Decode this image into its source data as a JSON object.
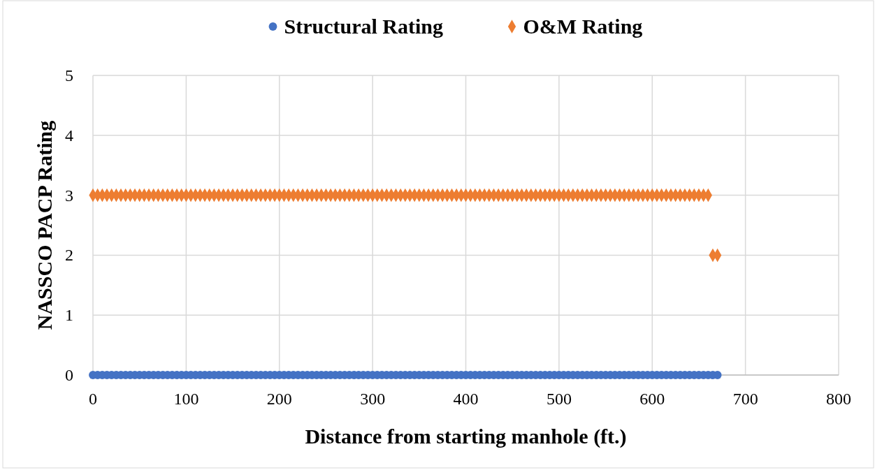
{
  "chart_data": {
    "type": "scatter",
    "xlabel": "Distance from starting manhole (ft.)",
    "ylabel": "NASSCO PACP Rating",
    "xlim": [
      0,
      800
    ],
    "xticks": [
      0,
      100,
      200,
      300,
      400,
      500,
      600,
      700,
      800
    ],
    "ylim": [
      0,
      5
    ],
    "yticks": [
      0,
      1,
      2,
      3,
      4,
      5
    ],
    "grid": true,
    "legend": "top",
    "series": [
      {
        "name": "Structural Rating",
        "color": "#4472c4",
        "marker": "circle",
        "x": [
          0,
          5,
          10,
          15,
          20,
          25,
          30,
          35,
          40,
          45,
          50,
          55,
          60,
          65,
          70,
          75,
          80,
          85,
          90,
          95,
          100,
          105,
          110,
          115,
          120,
          125,
          130,
          135,
          140,
          145,
          150,
          155,
          160,
          165,
          170,
          175,
          180,
          185,
          190,
          195,
          200,
          205,
          210,
          215,
          220,
          225,
          230,
          235,
          240,
          245,
          250,
          255,
          260,
          265,
          270,
          275,
          280,
          285,
          290,
          295,
          300,
          305,
          310,
          315,
          320,
          325,
          330,
          335,
          340,
          345,
          350,
          355,
          360,
          365,
          370,
          375,
          380,
          385,
          390,
          395,
          400,
          405,
          410,
          415,
          420,
          425,
          430,
          435,
          440,
          445,
          450,
          455,
          460,
          465,
          470,
          475,
          480,
          485,
          490,
          495,
          500,
          505,
          510,
          515,
          520,
          525,
          530,
          535,
          540,
          545,
          550,
          555,
          560,
          565,
          570,
          575,
          580,
          585,
          590,
          595,
          600,
          605,
          610,
          615,
          620,
          625,
          630,
          635,
          640,
          645,
          650,
          655,
          660,
          665,
          670
        ],
        "values": [
          0,
          0,
          0,
          0,
          0,
          0,
          0,
          0,
          0,
          0,
          0,
          0,
          0,
          0,
          0,
          0,
          0,
          0,
          0,
          0,
          0,
          0,
          0,
          0,
          0,
          0,
          0,
          0,
          0,
          0,
          0,
          0,
          0,
          0,
          0,
          0,
          0,
          0,
          0,
          0,
          0,
          0,
          0,
          0,
          0,
          0,
          0,
          0,
          0,
          0,
          0,
          0,
          0,
          0,
          0,
          0,
          0,
          0,
          0,
          0,
          0,
          0,
          0,
          0,
          0,
          0,
          0,
          0,
          0,
          0,
          0,
          0,
          0,
          0,
          0,
          0,
          0,
          0,
          0,
          0,
          0,
          0,
          0,
          0,
          0,
          0,
          0,
          0,
          0,
          0,
          0,
          0,
          0,
          0,
          0,
          0,
          0,
          0,
          0,
          0,
          0,
          0,
          0,
          0,
          0,
          0,
          0,
          0,
          0,
          0,
          0,
          0,
          0,
          0,
          0,
          0,
          0,
          0,
          0,
          0,
          0,
          0,
          0,
          0,
          0,
          0,
          0,
          0,
          0,
          0,
          0,
          0,
          0,
          0,
          0
        ]
      },
      {
        "name": "O&M Rating",
        "color": "#ed7d31",
        "marker": "diamond",
        "x": [
          0,
          5,
          10,
          15,
          20,
          25,
          30,
          35,
          40,
          45,
          50,
          55,
          60,
          65,
          70,
          75,
          80,
          85,
          90,
          95,
          100,
          105,
          110,
          115,
          120,
          125,
          130,
          135,
          140,
          145,
          150,
          155,
          160,
          165,
          170,
          175,
          180,
          185,
          190,
          195,
          200,
          205,
          210,
          215,
          220,
          225,
          230,
          235,
          240,
          245,
          250,
          255,
          260,
          265,
          270,
          275,
          280,
          285,
          290,
          295,
          300,
          305,
          310,
          315,
          320,
          325,
          330,
          335,
          340,
          345,
          350,
          355,
          360,
          365,
          370,
          375,
          380,
          385,
          390,
          395,
          400,
          405,
          410,
          415,
          420,
          425,
          430,
          435,
          440,
          445,
          450,
          455,
          460,
          465,
          470,
          475,
          480,
          485,
          490,
          495,
          500,
          505,
          510,
          515,
          520,
          525,
          530,
          535,
          540,
          545,
          550,
          555,
          560,
          565,
          570,
          575,
          580,
          585,
          590,
          595,
          600,
          605,
          610,
          615,
          620,
          625,
          630,
          635,
          640,
          645,
          650,
          655,
          660,
          665,
          670
        ],
        "values": [
          3,
          3,
          3,
          3,
          3,
          3,
          3,
          3,
          3,
          3,
          3,
          3,
          3,
          3,
          3,
          3,
          3,
          3,
          3,
          3,
          3,
          3,
          3,
          3,
          3,
          3,
          3,
          3,
          3,
          3,
          3,
          3,
          3,
          3,
          3,
          3,
          3,
          3,
          3,
          3,
          3,
          3,
          3,
          3,
          3,
          3,
          3,
          3,
          3,
          3,
          3,
          3,
          3,
          3,
          3,
          3,
          3,
          3,
          3,
          3,
          3,
          3,
          3,
          3,
          3,
          3,
          3,
          3,
          3,
          3,
          3,
          3,
          3,
          3,
          3,
          3,
          3,
          3,
          3,
          3,
          3,
          3,
          3,
          3,
          3,
          3,
          3,
          3,
          3,
          3,
          3,
          3,
          3,
          3,
          3,
          3,
          3,
          3,
          3,
          3,
          3,
          3,
          3,
          3,
          3,
          3,
          3,
          3,
          3,
          3,
          3,
          3,
          3,
          3,
          3,
          3,
          3,
          3,
          3,
          3,
          3,
          3,
          3,
          3,
          3,
          3,
          3,
          3,
          3,
          3,
          3,
          3,
          3,
          2,
          2
        ]
      }
    ]
  }
}
